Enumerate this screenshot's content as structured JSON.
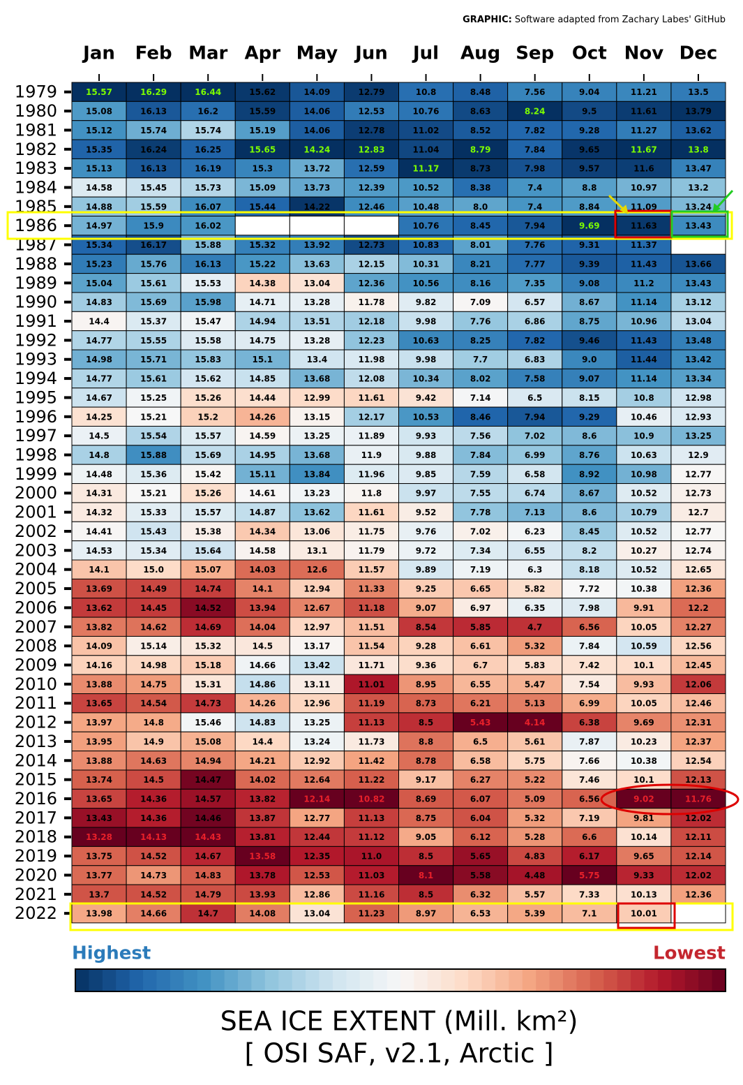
{
  "chart_data": {
    "type": "heatmap",
    "credit_label": "GRAPHIC:",
    "credit": "Software adapted from Zachary Labes' GitHub",
    "title": "SEA ICE EXTENT (Mill. km²)",
    "subtitle": "[ OSI SAF, v2.1, Arctic ]",
    "legend_high": "Highest",
    "legend_low": "Lowest",
    "colormap": [
      "#053061",
      "#2166ac",
      "#4393c3",
      "#92c5de",
      "#d1e5f0",
      "#f7f7f7",
      "#fddbc7",
      "#f4a582",
      "#d6604d",
      "#b2182b",
      "#67001f"
    ],
    "highlight_colors": {
      "max": "#7cfc00",
      "min": "#e8202a"
    },
    "x": [
      "Jan",
      "Feb",
      "Mar",
      "Apr",
      "May",
      "Jun",
      "Jul",
      "Aug",
      "Sep",
      "Oct",
      "Nov",
      "Dec"
    ],
    "y": [
      "1979",
      "1980",
      "1981",
      "1982",
      "1983",
      "1984",
      "1985",
      "1986",
      "1987",
      "1988",
      "1989",
      "1990",
      "1991",
      "1992",
      "1993",
      "1994",
      "1995",
      "1996",
      "1997",
      "1998",
      "1999",
      "2000",
      "2001",
      "2002",
      "2003",
      "2004",
      "2005",
      "2006",
      "2007",
      "2008",
      "2009",
      "2010",
      "2011",
      "2012",
      "2013",
      "2014",
      "2015",
      "2016",
      "2017",
      "2018",
      "2019",
      "2020",
      "2021",
      "2022"
    ],
    "values": [
      [
        15.57,
        16.29,
        16.44,
        15.62,
        14.09,
        12.79,
        10.8,
        8.48,
        7.56,
        9.04,
        11.21,
        13.5
      ],
      [
        15.08,
        16.13,
        16.2,
        15.59,
        14.06,
        12.53,
        10.76,
        8.63,
        8.24,
        9.5,
        11.61,
        13.79
      ],
      [
        15.12,
        15.74,
        15.74,
        15.19,
        14.06,
        12.78,
        11.02,
        8.52,
        7.82,
        9.28,
        11.27,
        13.62
      ],
      [
        15.35,
        16.24,
        16.25,
        15.65,
        14.24,
        12.83,
        11.04,
        8.79,
        7.84,
        9.65,
        11.67,
        13.8
      ],
      [
        15.13,
        16.13,
        16.19,
        15.3,
        13.72,
        12.59,
        11.17,
        8.73,
        7.98,
        9.57,
        11.6,
        13.47
      ],
      [
        14.58,
        15.45,
        15.73,
        15.09,
        13.73,
        12.39,
        10.52,
        8.38,
        7.4,
        8.8,
        10.97,
        13.2
      ],
      [
        14.88,
        15.59,
        16.07,
        15.44,
        14.22,
        12.46,
        10.48,
        8.0,
        7.4,
        8.84,
        11.09,
        13.24
      ],
      [
        14.97,
        15.9,
        16.02,
        null,
        null,
        null,
        10.76,
        8.45,
        7.94,
        9.69,
        11.63,
        13.43
      ],
      [
        15.34,
        16.17,
        15.88,
        15.32,
        13.92,
        12.73,
        10.83,
        8.01,
        7.76,
        9.31,
        11.37,
        null
      ],
      [
        15.23,
        15.76,
        16.13,
        15.22,
        13.63,
        12.15,
        10.31,
        8.21,
        7.77,
        9.39,
        11.43,
        13.66
      ],
      [
        15.04,
        15.61,
        15.53,
        14.38,
        13.04,
        12.36,
        10.56,
        8.16,
        7.35,
        9.08,
        11.2,
        13.43
      ],
      [
        14.83,
        15.69,
        15.98,
        14.71,
        13.28,
        11.78,
        9.82,
        7.09,
        6.57,
        8.67,
        11.14,
        13.12
      ],
      [
        14.4,
        15.37,
        15.47,
        14.94,
        13.51,
        12.18,
        9.98,
        7.76,
        6.86,
        8.75,
        10.96,
        13.04
      ],
      [
        14.77,
        15.55,
        15.58,
        14.75,
        13.28,
        12.23,
        10.63,
        8.25,
        7.82,
        9.46,
        11.43,
        13.48
      ],
      [
        14.98,
        15.71,
        15.83,
        15.1,
        13.4,
        11.98,
        9.98,
        7.7,
        6.83,
        9.0,
        11.44,
        13.42
      ],
      [
        14.77,
        15.61,
        15.62,
        14.85,
        13.68,
        12.08,
        10.34,
        8.02,
        7.58,
        9.07,
        11.14,
        13.34
      ],
      [
        14.67,
        15.25,
        15.26,
        14.44,
        12.99,
        11.61,
        9.42,
        7.14,
        6.5,
        8.15,
        10.8,
        12.98
      ],
      [
        14.25,
        15.21,
        15.2,
        14.26,
        13.15,
        12.17,
        10.53,
        8.46,
        7.94,
        9.29,
        10.46,
        12.93
      ],
      [
        14.5,
        15.54,
        15.57,
        14.59,
        13.25,
        11.89,
        9.93,
        7.56,
        7.02,
        8.6,
        10.9,
        13.25
      ],
      [
        14.8,
        15.88,
        15.69,
        14.95,
        13.68,
        11.9,
        9.88,
        7.84,
        6.99,
        8.76,
        10.63,
        12.9
      ],
      [
        14.48,
        15.36,
        15.42,
        15.11,
        13.84,
        11.96,
        9.85,
        7.59,
        6.58,
        8.92,
        10.98,
        12.77
      ],
      [
        14.31,
        15.21,
        15.26,
        14.61,
        13.23,
        11.8,
        9.97,
        7.55,
        6.74,
        8.67,
        10.52,
        12.73
      ],
      [
        14.32,
        15.33,
        15.57,
        14.87,
        13.62,
        11.61,
        9.52,
        7.78,
        7.13,
        8.6,
        10.79,
        12.7
      ],
      [
        14.41,
        15.43,
        15.38,
        14.34,
        13.06,
        11.75,
        9.76,
        7.02,
        6.23,
        8.45,
        10.52,
        12.77
      ],
      [
        14.53,
        15.34,
        15.64,
        14.58,
        13.1,
        11.79,
        9.72,
        7.34,
        6.55,
        8.2,
        10.27,
        12.74
      ],
      [
        14.1,
        15.0,
        15.07,
        14.03,
        12.6,
        11.57,
        9.89,
        7.19,
        6.3,
        8.18,
        10.52,
        12.65
      ],
      [
        13.69,
        14.49,
        14.74,
        14.1,
        12.94,
        11.33,
        9.25,
        6.65,
        5.82,
        7.72,
        10.38,
        12.36
      ],
      [
        13.62,
        14.45,
        14.52,
        13.94,
        12.67,
        11.18,
        9.07,
        6.97,
        6.35,
        7.98,
        9.91,
        12.2
      ],
      [
        13.82,
        14.62,
        14.69,
        14.04,
        12.97,
        11.51,
        8.54,
        5.85,
        4.7,
        6.56,
        10.05,
        12.27
      ],
      [
        14.09,
        15.14,
        15.32,
        14.5,
        13.17,
        11.54,
        9.28,
        6.61,
        5.32,
        7.84,
        10.59,
        12.56
      ],
      [
        14.16,
        14.98,
        15.18,
        14.66,
        13.42,
        11.71,
        9.36,
        6.7,
        5.83,
        7.42,
        10.1,
        12.45
      ],
      [
        13.88,
        14.75,
        15.31,
        14.86,
        13.11,
        11.01,
        8.95,
        6.55,
        5.47,
        7.54,
        9.93,
        12.06
      ],
      [
        13.65,
        14.54,
        14.73,
        14.26,
        12.96,
        11.19,
        8.73,
        6.21,
        5.13,
        6.99,
        10.05,
        12.46
      ],
      [
        13.97,
        14.8,
        15.46,
        14.83,
        13.25,
        11.13,
        8.5,
        5.43,
        4.14,
        6.38,
        9.69,
        12.31
      ],
      [
        13.95,
        14.9,
        15.08,
        14.4,
        13.24,
        11.73,
        8.8,
        6.5,
        5.61,
        7.87,
        10.23,
        12.37
      ],
      [
        13.88,
        14.63,
        14.94,
        14.21,
        12.92,
        11.42,
        8.78,
        6.58,
        5.75,
        7.66,
        10.38,
        12.54
      ],
      [
        13.74,
        14.5,
        14.47,
        14.02,
        12.64,
        11.22,
        9.17,
        6.27,
        5.22,
        7.46,
        10.1,
        12.13
      ],
      [
        13.65,
        14.36,
        14.57,
        13.82,
        12.14,
        10.82,
        8.69,
        6.07,
        5.09,
        6.56,
        9.02,
        11.76
      ],
      [
        13.43,
        14.36,
        14.46,
        13.87,
        12.77,
        11.13,
        8.75,
        6.04,
        5.32,
        7.19,
        9.81,
        12.02
      ],
      [
        13.28,
        14.13,
        14.43,
        13.81,
        12.44,
        11.12,
        9.05,
        6.12,
        5.28,
        6.6,
        10.14,
        12.11
      ],
      [
        13.75,
        14.52,
        14.67,
        13.58,
        12.35,
        11.0,
        8.5,
        5.65,
        4.83,
        6.17,
        9.65,
        12.14
      ],
      [
        13.77,
        14.73,
        14.83,
        13.78,
        12.53,
        11.03,
        8.1,
        5.58,
        4.48,
        5.75,
        9.33,
        12.02
      ],
      [
        13.7,
        14.52,
        14.79,
        13.93,
        12.86,
        11.16,
        8.5,
        6.32,
        5.57,
        7.33,
        10.13,
        12.36
      ],
      [
        13.98,
        14.66,
        14.7,
        14.08,
        13.04,
        11.23,
        8.97,
        6.53,
        5.39,
        7.1,
        10.01,
        null
      ]
    ],
    "value_labels": [
      [
        "15.57",
        "16.29",
        "16.44",
        "15.62",
        "14.09",
        "12.79",
        "10.8",
        "8.48",
        "7.56",
        "9.04",
        "11.21",
        "13.5"
      ],
      [
        "15.08",
        "16.13",
        "16.2",
        "15.59",
        "14.06",
        "12.53",
        "10.76",
        "8.63",
        "8.24",
        "9.5",
        "11.61",
        "13.79"
      ],
      [
        "15.12",
        "15.74",
        "15.74",
        "15.19",
        "14.06",
        "12.78",
        "11.02",
        "8.52",
        "7.82",
        "9.28",
        "11.27",
        "13.62"
      ],
      [
        "15.35",
        "16.24",
        "16.25",
        "15.65",
        "14.24",
        "12.83",
        "11.04",
        "8.79",
        "7.84",
        "9.65",
        "11.67",
        "13.8"
      ],
      [
        "15.13",
        "16.13",
        "16.19",
        "15.3",
        "13.72",
        "12.59",
        "11.17",
        "8.73",
        "7.98",
        "9.57",
        "11.6",
        "13.47"
      ],
      [
        "14.58",
        "15.45",
        "15.73",
        "15.09",
        "13.73",
        "12.39",
        "10.52",
        "8.38",
        "7.4",
        "8.8",
        "10.97",
        "13.2"
      ],
      [
        "14.88",
        "15.59",
        "16.07",
        "15.44",
        "14.22",
        "12.46",
        "10.48",
        "8.0",
        "7.4",
        "8.84",
        "11.09",
        "13.24"
      ],
      [
        "14.97",
        "15.9",
        "16.02",
        null,
        null,
        null,
        "10.76",
        "8.45",
        "7.94",
        "9.69",
        "11.63",
        "13.43"
      ],
      [
        "15.34",
        "16.17",
        "15.88",
        "15.32",
        "13.92",
        "12.73",
        "10.83",
        "8.01",
        "7.76",
        "9.31",
        "11.37",
        null
      ],
      [
        "15.23",
        "15.76",
        "16.13",
        "15.22",
        "13.63",
        "12.15",
        "10.31",
        "8.21",
        "7.77",
        "9.39",
        "11.43",
        "13.66"
      ],
      [
        "15.04",
        "15.61",
        "15.53",
        "14.38",
        "13.04",
        "12.36",
        "10.56",
        "8.16",
        "7.35",
        "9.08",
        "11.2",
        "13.43"
      ],
      [
        "14.83",
        "15.69",
        "15.98",
        "14.71",
        "13.28",
        "11.78",
        "9.82",
        "7.09",
        "6.57",
        "8.67",
        "11.14",
        "13.12"
      ],
      [
        "14.4",
        "15.37",
        "15.47",
        "14.94",
        "13.51",
        "12.18",
        "9.98",
        "7.76",
        "6.86",
        "8.75",
        "10.96",
        "13.04"
      ],
      [
        "14.77",
        "15.55",
        "15.58",
        "14.75",
        "13.28",
        "12.23",
        "10.63",
        "8.25",
        "7.82",
        "9.46",
        "11.43",
        "13.48"
      ],
      [
        "14.98",
        "15.71",
        "15.83",
        "15.1",
        "13.4",
        "11.98",
        "9.98",
        "7.7",
        "6.83",
        "9.0",
        "11.44",
        "13.42"
      ],
      [
        "14.77",
        "15.61",
        "15.62",
        "14.85",
        "13.68",
        "12.08",
        "10.34",
        "8.02",
        "7.58",
        "9.07",
        "11.14",
        "13.34"
      ],
      [
        "14.67",
        "15.25",
        "15.26",
        "14.44",
        "12.99",
        "11.61",
        "9.42",
        "7.14",
        "6.5",
        "8.15",
        "10.8",
        "12.98"
      ],
      [
        "14.25",
        "15.21",
        "15.2",
        "14.26",
        "13.15",
        "12.17",
        "10.53",
        "8.46",
        "7.94",
        "9.29",
        "10.46",
        "12.93"
      ],
      [
        "14.5",
        "15.54",
        "15.57",
        "14.59",
        "13.25",
        "11.89",
        "9.93",
        "7.56",
        "7.02",
        "8.6",
        "10.9",
        "13.25"
      ],
      [
        "14.8",
        "15.88",
        "15.69",
        "14.95",
        "13.68",
        "11.9",
        "9.88",
        "7.84",
        "6.99",
        "8.76",
        "10.63",
        "12.9"
      ],
      [
        "14.48",
        "15.36",
        "15.42",
        "15.11",
        "13.84",
        "11.96",
        "9.85",
        "7.59",
        "6.58",
        "8.92",
        "10.98",
        "12.77"
      ],
      [
        "14.31",
        "15.21",
        "15.26",
        "14.61",
        "13.23",
        "11.8",
        "9.97",
        "7.55",
        "6.74",
        "8.67",
        "10.52",
        "12.73"
      ],
      [
        "14.32",
        "15.33",
        "15.57",
        "14.87",
        "13.62",
        "11.61",
        "9.52",
        "7.78",
        "7.13",
        "8.6",
        "10.79",
        "12.7"
      ],
      [
        "14.41",
        "15.43",
        "15.38",
        "14.34",
        "13.06",
        "11.75",
        "9.76",
        "7.02",
        "6.23",
        "8.45",
        "10.52",
        "12.77"
      ],
      [
        "14.53",
        "15.34",
        "15.64",
        "14.58",
        "13.1",
        "11.79",
        "9.72",
        "7.34",
        "6.55",
        "8.2",
        "10.27",
        "12.74"
      ],
      [
        "14.1",
        "15.0",
        "15.07",
        "14.03",
        "12.6",
        "11.57",
        "9.89",
        "7.19",
        "6.3",
        "8.18",
        "10.52",
        "12.65"
      ],
      [
        "13.69",
        "14.49",
        "14.74",
        "14.1",
        "12.94",
        "11.33",
        "9.25",
        "6.65",
        "5.82",
        "7.72",
        "10.38",
        "12.36"
      ],
      [
        "13.62",
        "14.45",
        "14.52",
        "13.94",
        "12.67",
        "11.18",
        "9.07",
        "6.97",
        "6.35",
        "7.98",
        "9.91",
        "12.2"
      ],
      [
        "13.82",
        "14.62",
        "14.69",
        "14.04",
        "12.97",
        "11.51",
        "8.54",
        "5.85",
        "4.7",
        "6.56",
        "10.05",
        "12.27"
      ],
      [
        "14.09",
        "15.14",
        "15.32",
        "14.5",
        "13.17",
        "11.54",
        "9.28",
        "6.61",
        "5.32",
        "7.84",
        "10.59",
        "12.56"
      ],
      [
        "14.16",
        "14.98",
        "15.18",
        "14.66",
        "13.42",
        "11.71",
        "9.36",
        "6.7",
        "5.83",
        "7.42",
        "10.1",
        "12.45"
      ],
      [
        "13.88",
        "14.75",
        "15.31",
        "14.86",
        "13.11",
        "11.01",
        "8.95",
        "6.55",
        "5.47",
        "7.54",
        "9.93",
        "12.06"
      ],
      [
        "13.65",
        "14.54",
        "14.73",
        "14.26",
        "12.96",
        "11.19",
        "8.73",
        "6.21",
        "5.13",
        "6.99",
        "10.05",
        "12.46"
      ],
      [
        "13.97",
        "14.8",
        "15.46",
        "14.83",
        "13.25",
        "11.13",
        "8.5",
        "5.43",
        "4.14",
        "6.38",
        "9.69",
        "12.31"
      ],
      [
        "13.95",
        "14.9",
        "15.08",
        "14.4",
        "13.24",
        "11.73",
        "8.8",
        "6.5",
        "5.61",
        "7.87",
        "10.23",
        "12.37"
      ],
      [
        "13.88",
        "14.63",
        "14.94",
        "14.21",
        "12.92",
        "11.42",
        "8.78",
        "6.58",
        "5.75",
        "7.66",
        "10.38",
        "12.54"
      ],
      [
        "13.74",
        "14.5",
        "14.47",
        "14.02",
        "12.64",
        "11.22",
        "9.17",
        "6.27",
        "5.22",
        "7.46",
        "10.1",
        "12.13"
      ],
      [
        "13.65",
        "14.36",
        "14.57",
        "13.82",
        "12.14",
        "10.82",
        "8.69",
        "6.07",
        "5.09",
        "6.56",
        "9.02",
        "11.76"
      ],
      [
        "13.43",
        "14.36",
        "14.46",
        "13.87",
        "12.77",
        "11.13",
        "8.75",
        "6.04",
        "5.32",
        "7.19",
        "9.81",
        "12.02"
      ],
      [
        "13.28",
        "14.13",
        "14.43",
        "13.81",
        "12.44",
        "11.12",
        "9.05",
        "6.12",
        "5.28",
        "6.6",
        "10.14",
        "12.11"
      ],
      [
        "13.75",
        "14.52",
        "14.67",
        "13.58",
        "12.35",
        "11.0",
        "8.5",
        "5.65",
        "4.83",
        "6.17",
        "9.65",
        "12.14"
      ],
      [
        "13.77",
        "14.73",
        "14.83",
        "13.78",
        "12.53",
        "11.03",
        "8.1",
        "5.58",
        "4.48",
        "5.75",
        "9.33",
        "12.02"
      ],
      [
        "13.7",
        "14.52",
        "14.79",
        "13.93",
        "12.86",
        "11.16",
        "8.5",
        "6.32",
        "5.57",
        "7.33",
        "10.13",
        "12.36"
      ],
      [
        "13.98",
        "14.66",
        "14.7",
        "14.08",
        "13.04",
        "11.23",
        "8.97",
        "6.53",
        "5.39",
        "7.1",
        "10.01",
        null
      ]
    ]
  }
}
